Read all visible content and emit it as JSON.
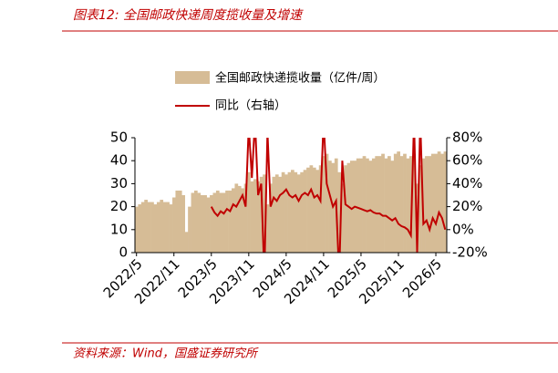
{
  "chart_data": {
    "type": "bar_line",
    "title": "图表12:  全国邮政快递周度揽收量及增速",
    "source": "资料来源：Wind，国盛证券研究所",
    "categories": [
      "2022/5",
      null,
      null,
      null,
      null,
      null,
      null,
      null,
      null,
      null,
      null,
      null,
      "2022/11",
      null,
      null,
      null,
      null,
      null,
      null,
      null,
      null,
      null,
      null,
      null,
      "2023/5",
      null,
      null,
      null,
      null,
      null,
      null,
      null,
      null,
      null,
      null,
      null,
      "2023/11",
      null,
      null,
      null,
      null,
      null,
      null,
      null,
      null,
      null,
      null,
      null,
      "2024/5",
      null,
      null,
      null,
      null,
      null,
      null,
      null,
      null,
      null,
      null,
      null,
      "2024/11",
      null,
      null,
      null,
      null,
      null,
      null,
      null,
      null,
      null,
      null,
      null,
      "2025/5",
      null,
      null,
      null,
      null,
      null,
      null,
      null,
      null,
      null,
      null,
      null,
      "2025/11",
      null,
      null,
      null,
      null,
      null,
      null,
      null,
      null,
      null,
      null,
      null,
      "2026/5",
      null,
      null,
      null
    ],
    "series": [
      {
        "name": "全国邮政快递揽收量（亿件/周）",
        "color": "#d6bc96",
        "values": [
          20,
          21,
          22,
          23,
          22,
          22,
          21,
          22,
          23,
          22,
          22,
          21,
          24,
          27,
          27,
          25,
          9,
          20,
          26,
          27,
          26,
          25,
          25,
          24,
          25,
          26,
          27,
          26,
          26,
          27,
          27,
          28,
          30,
          29,
          28,
          30,
          35,
          31,
          32,
          31,
          33,
          34,
          21,
          30,
          33,
          34,
          33,
          35,
          34,
          35,
          36,
          35,
          34,
          35,
          36,
          37,
          38,
          37,
          36,
          38,
          42,
          43,
          40,
          39,
          41,
          35,
          30,
          38,
          39,
          40,
          40,
          41,
          41,
          42,
          41,
          40,
          41,
          42,
          42,
          43,
          41,
          42,
          40,
          43,
          44,
          42,
          43,
          41,
          42,
          43,
          30,
          38,
          41,
          42,
          42,
          43,
          43,
          44,
          43,
          44
        ]
      },
      {
        "name": "同比（右轴）",
        "color": "#c00000",
        "axis": "y2",
        "values": [
          null,
          null,
          null,
          null,
          null,
          null,
          null,
          null,
          null,
          null,
          null,
          null,
          null,
          null,
          null,
          null,
          null,
          null,
          null,
          null,
          null,
          null,
          null,
          null,
          20,
          15,
          12,
          16,
          14,
          18,
          16,
          22,
          20,
          25,
          30,
          20,
          90,
          45,
          95,
          30,
          40,
          -40,
          85,
          20,
          28,
          25,
          30,
          32,
          35,
          30,
          28,
          30,
          25,
          30,
          32,
          30,
          35,
          28,
          30,
          25,
          95,
          40,
          30,
          20,
          25,
          -40,
          60,
          22,
          20,
          18,
          20,
          19,
          18,
          17,
          16,
          17,
          15,
          14,
          14,
          12,
          12,
          10,
          8,
          10,
          5,
          3,
          2,
          0,
          -5,
          95,
          -20,
          95,
          5,
          8,
          0,
          10,
          5,
          15,
          10,
          0
        ]
      }
    ],
    "ylim": [
      0,
      50
    ],
    "yticks": [
      0,
      10,
      20,
      30,
      40,
      50
    ],
    "y2lim": [
      -20,
      80
    ],
    "y2ticks": [
      {
        "value": -20,
        "label": "-20%"
      },
      {
        "value": 0,
        "label": "0%"
      },
      {
        "value": 20,
        "label": "20%"
      },
      {
        "value": 40,
        "label": "40%"
      },
      {
        "value": 60,
        "label": "60%"
      },
      {
        "value": 80,
        "label": "80%"
      }
    ]
  }
}
